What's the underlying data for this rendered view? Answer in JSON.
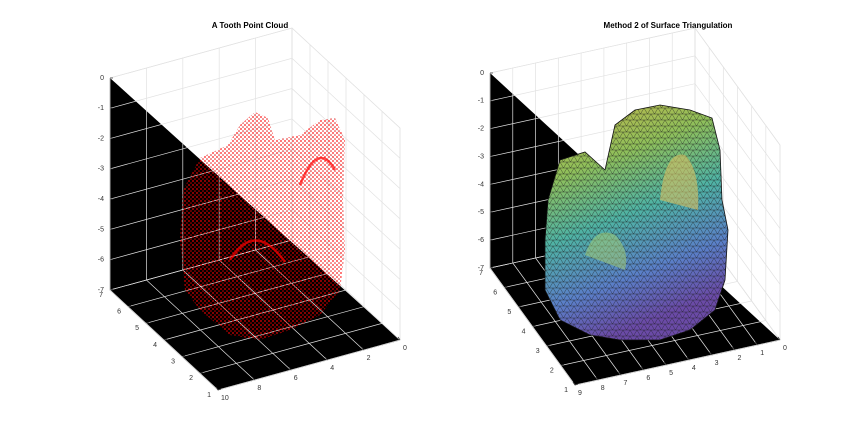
{
  "chart_data": [
    {
      "type": "scatter3d",
      "title": "A Tooth Point Cloud",
      "color": "#ff0000",
      "grid": true,
      "xlim": [
        0,
        10
      ],
      "ylim": [
        1,
        7
      ],
      "zlim": [
        -7,
        0
      ],
      "xticks": [
        0,
        2,
        4,
        6,
        8,
        10
      ],
      "yticks": [
        1,
        2,
        3,
        4,
        5,
        6,
        7
      ],
      "zticks": [
        -7,
        -6,
        -5,
        -4,
        -3,
        -2,
        -1,
        0
      ]
    },
    {
      "type": "surface",
      "title": "Method 2 of Surface Triangulation",
      "grid": true,
      "xlim": [
        0,
        9
      ],
      "ylim": [
        1,
        7
      ],
      "zlim": [
        -7,
        0
      ],
      "xticks": [
        0,
        1,
        2,
        3,
        4,
        5,
        6,
        7,
        8,
        9
      ],
      "yticks": [
        1,
        2,
        3,
        4,
        5,
        6,
        7
      ],
      "zticks": [
        -7,
        -6,
        -5,
        -4,
        -3,
        -2,
        -1,
        0
      ]
    }
  ]
}
